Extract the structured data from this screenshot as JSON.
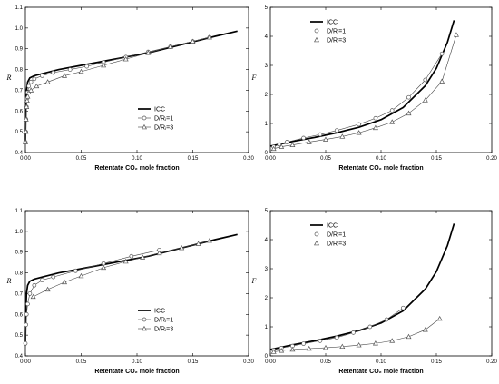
{
  "chart_data": [
    {
      "type": "line",
      "xlabel": "Retentate CO₂ mole fraction",
      "ylabel": "R",
      "xlim": [
        0,
        0.2
      ],
      "ylim": [
        0.4,
        1.1
      ],
      "xticks": [
        0,
        0.05,
        0.1,
        0.15,
        0.2
      ],
      "xtick_labels": [
        "0.00",
        "0.05",
        "0.10",
        "0.15",
        "0.20"
      ],
      "yticks": [
        0.4,
        0.5,
        0.6,
        0.7,
        0.8,
        0.9,
        1.0,
        1.1
      ],
      "ytick_labels": [
        "0.4",
        "0.5",
        "0.6",
        "0.7",
        "0.8",
        "0.9",
        "1.0",
        "1.1"
      ],
      "legend": "lower-right",
      "series": [
        {
          "name": "ICC",
          "style": "thick",
          "marker": "none",
          "x": [
            0,
            0.0005,
            0.001,
            0.002,
            0.004,
            0.008,
            0.015,
            0.03,
            0.05,
            0.08,
            0.11,
            0.14,
            0.17,
            0.19
          ],
          "y": [
            0.45,
            0.62,
            0.7,
            0.74,
            0.76,
            0.77,
            0.78,
            0.8,
            0.82,
            0.85,
            0.88,
            0.92,
            0.96,
            0.985
          ]
        },
        {
          "name": "D/Rᵢ=1",
          "style": "line",
          "marker": "circle",
          "x": [
            0,
            0.0003,
            0.0006,
            0.001,
            0.0015,
            0.002,
            0.003,
            0.005,
            0.008,
            0.015,
            0.025,
            0.04,
            0.055,
            0.07,
            0.09,
            0.11,
            0.13,
            0.15,
            0.165
          ],
          "y": [
            0.45,
            0.5,
            0.56,
            0.62,
            0.66,
            0.69,
            0.72,
            0.74,
            0.755,
            0.77,
            0.785,
            0.8,
            0.815,
            0.835,
            0.86,
            0.885,
            0.91,
            0.935,
            0.955
          ]
        },
        {
          "name": "D/Rᵢ=3",
          "style": "line",
          "marker": "triangle",
          "x": [
            0,
            0.0003,
            0.0006,
            0.001,
            0.0015,
            0.002,
            0.003,
            0.005,
            0.01,
            0.02,
            0.035,
            0.05,
            0.07,
            0.09,
            0.11,
            0.13,
            0.15,
            0.165
          ],
          "y": [
            0.45,
            0.5,
            0.56,
            0.62,
            0.65,
            0.67,
            0.69,
            0.7,
            0.72,
            0.74,
            0.77,
            0.79,
            0.82,
            0.85,
            0.88,
            0.91,
            0.935,
            0.955
          ]
        }
      ]
    },
    {
      "type": "line",
      "xlabel": "Retentate CO₂ mole fraction",
      "ylabel": "F",
      "xlim": [
        0,
        0.2
      ],
      "ylim": [
        0,
        5
      ],
      "xticks": [
        0,
        0.05,
        0.1,
        0.15,
        0.2
      ],
      "xtick_labels": [
        "0.00",
        "0.05",
        "0.10",
        "0.15",
        "0.20"
      ],
      "yticks": [
        0,
        1,
        2,
        3,
        4,
        5
      ],
      "ytick_labels": [
        "0",
        "1",
        "2",
        "3",
        "4",
        "5"
      ],
      "legend": "upper-left",
      "series": [
        {
          "name": "ICC",
          "style": "thick",
          "marker": "none",
          "x": [
            0,
            0.01,
            0.02,
            0.04,
            0.06,
            0.08,
            0.1,
            0.12,
            0.14,
            0.15,
            0.16,
            0.166
          ],
          "y": [
            0.22,
            0.3,
            0.38,
            0.52,
            0.68,
            0.87,
            1.13,
            1.55,
            2.3,
            2.9,
            3.8,
            4.55
          ]
        },
        {
          "name": "D/Rᵢ=1",
          "style": "line",
          "marker": "circle",
          "x": [
            0.003,
            0.008,
            0.015,
            0.03,
            0.045,
            0.06,
            0.08,
            0.095,
            0.11,
            0.125,
            0.14,
            0.155
          ],
          "y": [
            0.2,
            0.28,
            0.36,
            0.5,
            0.62,
            0.76,
            0.97,
            1.18,
            1.45,
            1.9,
            2.5,
            3.4
          ]
        },
        {
          "name": "D/Rᵢ=3",
          "style": "line",
          "marker": "triangle",
          "x": [
            0.003,
            0.01,
            0.02,
            0.035,
            0.05,
            0.065,
            0.08,
            0.095,
            0.11,
            0.125,
            0.14,
            0.155,
            0.168
          ],
          "y": [
            0.13,
            0.2,
            0.26,
            0.36,
            0.45,
            0.55,
            0.68,
            0.85,
            1.05,
            1.35,
            1.8,
            2.45,
            4.05
          ]
        }
      ]
    },
    {
      "type": "line",
      "xlabel": "Retentate CO₂ mole fraction",
      "ylabel": "R",
      "xlim": [
        0,
        0.2
      ],
      "ylim": [
        0.4,
        1.1
      ],
      "xticks": [
        0,
        0.05,
        0.1,
        0.15,
        0.2
      ],
      "xtick_labels": [
        "0.00",
        "0.05",
        "0.10",
        "0.15",
        "0.20"
      ],
      "yticks": [
        0.4,
        0.5,
        0.6,
        0.7,
        0.8,
        0.9,
        1.0,
        1.1
      ],
      "ytick_labels": [
        "0.4",
        "0.5",
        "0.6",
        "0.7",
        "0.8",
        "0.9",
        "1.0",
        "1.1"
      ],
      "legend": "lower-right",
      "series": [
        {
          "name": "ICC",
          "style": "thick",
          "marker": "none",
          "x": [
            0,
            0.0005,
            0.001,
            0.002,
            0.004,
            0.008,
            0.015,
            0.03,
            0.05,
            0.08,
            0.11,
            0.14,
            0.17,
            0.19
          ],
          "y": [
            0.45,
            0.62,
            0.7,
            0.74,
            0.76,
            0.77,
            0.78,
            0.8,
            0.82,
            0.85,
            0.88,
            0.92,
            0.96,
            0.985
          ]
        },
        {
          "name": "D/Rᵢ=1",
          "style": "line",
          "marker": "circle",
          "x": [
            0,
            0.0005,
            0.001,
            0.002,
            0.004,
            0.008,
            0.015,
            0.025,
            0.045,
            0.07,
            0.095,
            0.12
          ],
          "y": [
            0.46,
            0.55,
            0.6,
            0.65,
            0.7,
            0.74,
            0.765,
            0.78,
            0.81,
            0.845,
            0.88,
            0.91
          ]
        },
        {
          "name": "D/Rᵢ=3",
          "style": "line",
          "marker": "triangle",
          "x": [
            0.007,
            0.02,
            0.035,
            0.05,
            0.07,
            0.09,
            0.105,
            0.12,
            0.14,
            0.155,
            0.165
          ],
          "y": [
            0.685,
            0.72,
            0.755,
            0.785,
            0.825,
            0.855,
            0.875,
            0.895,
            0.92,
            0.94,
            0.955
          ]
        }
      ]
    },
    {
      "type": "line",
      "xlabel": "Retentate CO₂ mole fraction",
      "ylabel": "F",
      "xlim": [
        0,
        0.2
      ],
      "ylim": [
        0,
        5
      ],
      "xticks": [
        0,
        0.05,
        0.1,
        0.15,
        0.2
      ],
      "xtick_labels": [
        "0.00",
        "0.05",
        "0.10",
        "0.15",
        "0.20"
      ],
      "yticks": [
        0,
        1,
        2,
        3,
        4,
        5
      ],
      "ytick_labels": [
        "0",
        "1",
        "2",
        "3",
        "4",
        "5"
      ],
      "legend": "upper-left",
      "series": [
        {
          "name": "ICC",
          "style": "thick",
          "marker": "none",
          "x": [
            0,
            0.01,
            0.02,
            0.04,
            0.06,
            0.08,
            0.1,
            0.12,
            0.14,
            0.15,
            0.16,
            0.166
          ],
          "y": [
            0.22,
            0.3,
            0.38,
            0.52,
            0.68,
            0.87,
            1.13,
            1.55,
            2.3,
            2.9,
            3.8,
            4.55
          ]
        },
        {
          "name": "D/Rᵢ=1",
          "style": "line",
          "marker": "circle",
          "x": [
            0.003,
            0.01,
            0.02,
            0.03,
            0.045,
            0.06,
            0.075,
            0.09,
            0.105,
            0.12
          ],
          "y": [
            0.2,
            0.27,
            0.34,
            0.42,
            0.52,
            0.63,
            0.8,
            1.0,
            1.25,
            1.65
          ]
        },
        {
          "name": "D/Rᵢ=3",
          "style": "line",
          "marker": "triangle",
          "x": [
            0.003,
            0.01,
            0.02,
            0.035,
            0.05,
            0.065,
            0.08,
            0.095,
            0.11,
            0.125,
            0.14,
            0.153
          ],
          "y": [
            0.14,
            0.18,
            0.22,
            0.25,
            0.28,
            0.32,
            0.37,
            0.43,
            0.52,
            0.66,
            0.9,
            1.28
          ]
        }
      ]
    }
  ]
}
